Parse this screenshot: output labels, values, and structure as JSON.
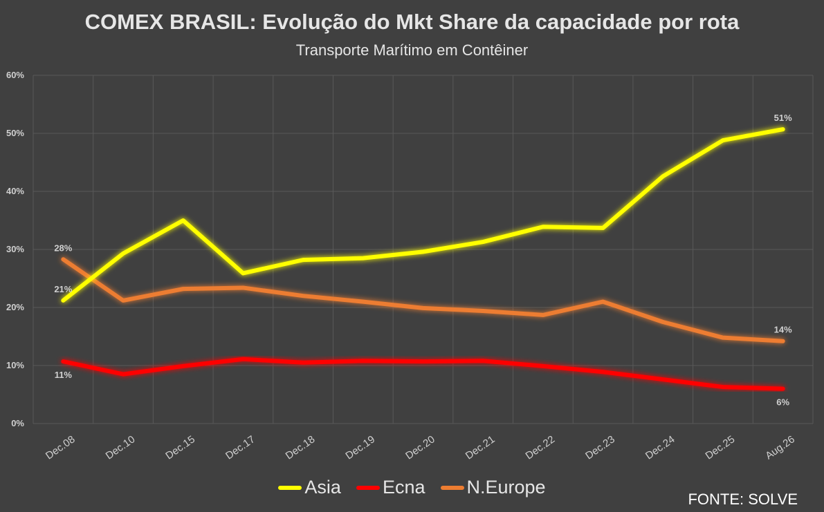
{
  "chart_data": {
    "type": "line",
    "title": "COMEX BRASIL: Evolução do Mkt Share da capacidade por rota",
    "subtitle": "Transporte Marítimo em Contêiner",
    "categories": [
      "Dec.08",
      "Dec.10",
      "Dec.15",
      "Dec.17",
      "Dec.18",
      "Dec.19",
      "Dec.20",
      "Dec.21",
      "Dec.22",
      "Dec.23",
      "Dec.24",
      "Dec.25",
      "Aug.26"
    ],
    "ylim": [
      0,
      60
    ],
    "yticks": [
      0,
      10,
      20,
      30,
      40,
      50,
      60
    ],
    "ytick_labels": [
      "0%",
      "10%",
      "20%",
      "30%",
      "40%",
      "50%",
      "60%"
    ],
    "grid": true,
    "legend_position": "bottom",
    "series": [
      {
        "name": "Asia",
        "color": "#ffff00",
        "values": [
          21.2,
          29.3,
          35.0,
          25.9,
          28.2,
          28.5,
          29.6,
          31.3,
          33.9,
          33.7,
          42.6,
          48.8,
          50.7
        ],
        "data_labels": [
          {
            "index": 0,
            "text": "21%",
            "position": "above"
          },
          {
            "index": 12,
            "text": "51%",
            "position": "above"
          }
        ]
      },
      {
        "name": "Ecna",
        "color": "#ff0000",
        "values": [
          10.7,
          8.5,
          9.9,
          11.1,
          10.5,
          10.8,
          10.7,
          10.8,
          9.9,
          8.9,
          7.6,
          6.3,
          6.0
        ],
        "data_labels": [
          {
            "index": 0,
            "text": "11%",
            "position": "below"
          },
          {
            "index": 12,
            "text": "6%",
            "position": "below"
          }
        ]
      },
      {
        "name": "N.Europe",
        "color": "#ed7d31",
        "values": [
          28.3,
          21.2,
          23.2,
          23.4,
          22.0,
          21.0,
          19.9,
          19.4,
          18.7,
          21.0,
          17.5,
          14.8,
          14.2
        ],
        "data_labels": [
          {
            "index": 0,
            "text": "28%",
            "position": "above"
          },
          {
            "index": 12,
            "text": "14%",
            "position": "above"
          }
        ]
      }
    ]
  },
  "source_note": "FONTE: SOLVE"
}
